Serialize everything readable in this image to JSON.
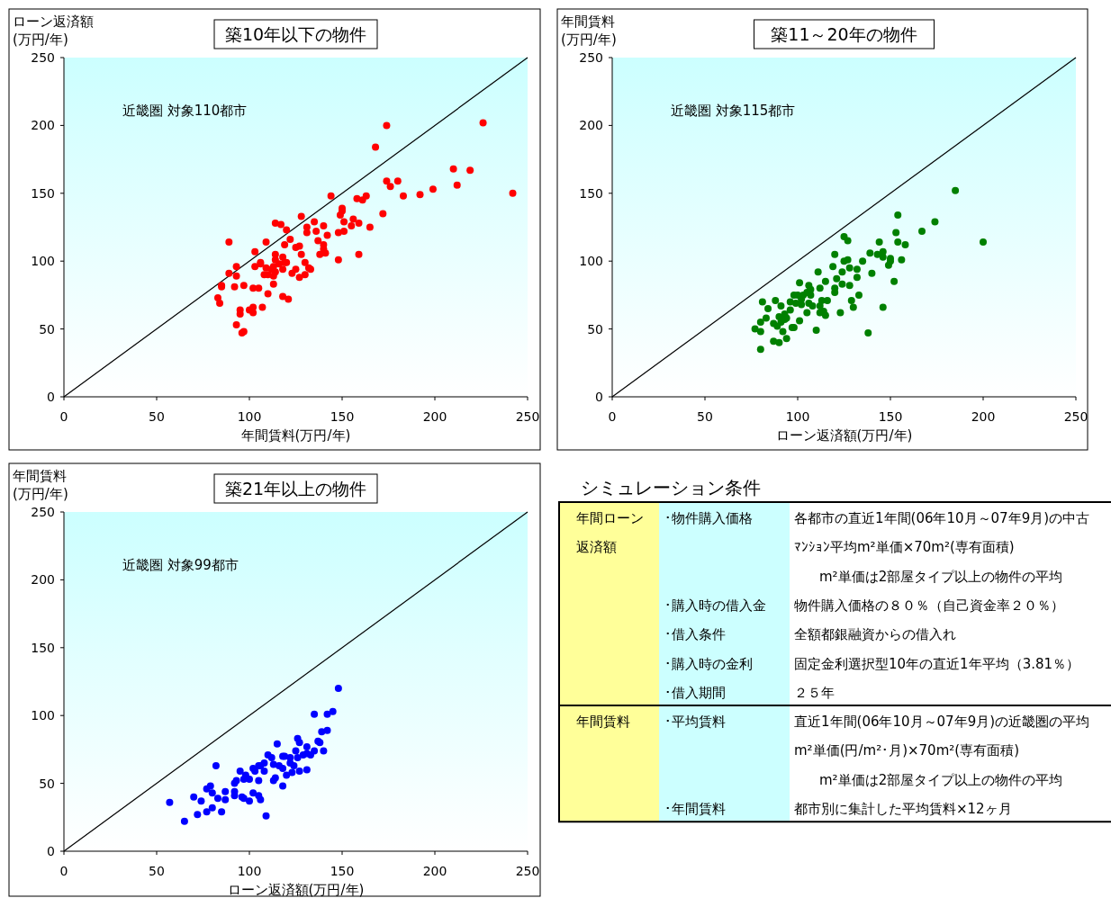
{
  "chart_data": [
    {
      "type": "scatter",
      "title": "築10年以下の物件",
      "xlabel": "年間賃料(万円/年)",
      "ylabel": "ローン返済額\n(万円/年)",
      "annotations": [
        "近畿圏 対象110都市"
      ],
      "xlim": [
        0,
        250
      ],
      "ylim": [
        0,
        250
      ],
      "xticks": [
        0,
        50,
        100,
        150,
        200,
        250
      ],
      "yticks": [
        0,
        50,
        100,
        150,
        200,
        250
      ],
      "series": [
        {
          "type": "line",
          "marker": "none",
          "color": "#000000",
          "x": [
            0,
            250
          ],
          "values": [
            0,
            250
          ]
        },
        {
          "type": "scatter",
          "marker": "circle",
          "color": "#ff0000",
          "x": [
            174,
            226,
            168,
            210,
            219,
            242,
            174,
            180,
            176,
            183,
            192,
            199,
            212,
            144,
            158,
            161,
            163,
            150,
            150,
            149,
            172,
            151,
            156,
            155,
            159,
            165,
            159,
            128,
            135,
            140,
            131,
            131,
            136,
            142,
            148,
            151,
            137,
            140,
            138,
            141,
            148,
            114,
            117,
            120,
            122,
            119,
            125,
            127,
            128,
            130,
            132,
            130,
            127,
            125,
            123,
            118,
            119,
            120,
            118,
            114,
            114,
            113,
            114,
            113,
            109,
            108,
            110,
            106,
            103,
            103,
            109,
            113,
            110,
            118,
            121,
            107,
            102,
            100,
            102,
            95,
            95,
            93,
            97,
            96,
            105,
            102,
            97,
            92,
            85,
            85,
            83,
            84,
            89,
            89,
            93,
            93,
            112,
            116,
            106,
            140,
            133
          ],
          "values": [
            200,
            202,
            184,
            168,
            167,
            150,
            159,
            159,
            155,
            148,
            149,
            153,
            156,
            148,
            146,
            145,
            148,
            139,
            137,
            134,
            135,
            129,
            131,
            126,
            128,
            125,
            105,
            133,
            129,
            126,
            125,
            121,
            122,
            119,
            121,
            122,
            115,
            112,
            105,
            106,
            101,
            128,
            127,
            123,
            116,
            112,
            110,
            111,
            105,
            99,
            95,
            90,
            88,
            94,
            91,
            103,
            99,
            99,
            94,
            105,
            101,
            96,
            92,
            89,
            95,
            90,
            90,
            99,
            96,
            107,
            114,
            83,
            76,
            74,
            72,
            66,
            66,
            64,
            62,
            64,
            61,
            53,
            48,
            47,
            80,
            80,
            82,
            81,
            82,
            81,
            73,
            69,
            114,
            91,
            89,
            96,
            94,
            98,
            98,
            109,
            94
          ]
        }
      ]
    },
    {
      "type": "scatter",
      "title": "築11～20年の物件",
      "xlabel": "ローン返済額(万円/年)",
      "ylabel": "年間賃料\n(万円/年)",
      "annotations": [
        "近畿圏 対象115都市"
      ],
      "xlim": [
        0,
        250
      ],
      "ylim": [
        0,
        250
      ],
      "xticks": [
        0,
        50,
        100,
        150,
        200,
        250
      ],
      "yticks": [
        0,
        50,
        100,
        150,
        200,
        250
      ],
      "series": [
        {
          "type": "line",
          "marker": "none",
          "color": "#000000",
          "x": [
            0,
            250
          ],
          "values": [
            0,
            250
          ]
        },
        {
          "type": "scatter",
          "marker": "circle",
          "color": "#008000",
          "x": [
            185,
            200,
            154,
            174,
            167,
            153,
            154,
            158,
            156,
            150,
            149,
            150,
            152,
            144,
            146,
            143,
            146,
            139,
            135,
            140,
            132,
            132,
            133,
            146,
            138,
            125,
            127,
            120,
            125,
            127,
            119,
            124,
            128,
            111,
            121,
            115,
            124,
            128,
            120,
            120,
            112,
            129,
            130,
            123,
            110,
            116,
            113,
            114,
            112,
            101,
            106,
            98,
            105,
            107,
            102,
            106,
            108,
            105,
            96,
            99,
            91,
            88,
            81,
            84,
            96,
            93,
            90,
            94,
            83,
            80,
            87,
            89,
            101,
            98,
            97,
            77,
            80,
            92,
            87,
            94,
            90,
            80,
            100,
            103,
            107,
            102,
            93,
            112,
            115,
            91
          ],
          "values": [
            152,
            114,
            134,
            129,
            122,
            121,
            114,
            112,
            101,
            102,
            97,
            100,
            85,
            114,
            107,
            105,
            103,
            106,
            100,
            91,
            94,
            88,
            75,
            66,
            47,
            118,
            115,
            105,
            100,
            101,
            96,
            92,
            95,
            92,
            87,
            85,
            83,
            82,
            80,
            77,
            80,
            71,
            66,
            62,
            49,
            71,
            71,
            63,
            67,
            84,
            82,
            75,
            77,
            75,
            72,
            69,
            67,
            62,
            70,
            69,
            67,
            71,
            70,
            65,
            64,
            61,
            59,
            58,
            58,
            55,
            54,
            52,
            56,
            51,
            51,
            50,
            48,
            48,
            41,
            43,
            40,
            35,
            75,
            75,
            79,
            68,
            57,
            62,
            60,
            55
          ]
        }
      ]
    },
    {
      "type": "scatter",
      "title": "築21年以上の物件",
      "xlabel": "ローン返済額(万円/年)",
      "ylabel": "年間賃料\n(万円/年)",
      "annotations": [
        "近畿圏 対象99都市"
      ],
      "xlim": [
        0,
        250
      ],
      "ylim": [
        0,
        250
      ],
      "xticks": [
        0,
        50,
        100,
        150,
        200,
        250
      ],
      "yticks": [
        0,
        50,
        100,
        150,
        200,
        250
      ],
      "series": [
        {
          "type": "line",
          "marker": "none",
          "color": "#000000",
          "x": [
            0,
            250
          ],
          "values": [
            0,
            250
          ]
        },
        {
          "type": "scatter",
          "marker": "circle",
          "color": "#0000ff",
          "x": [
            148,
            135,
            142,
            145,
            139,
            142,
            126,
            127,
            115,
            137,
            138,
            131,
            135,
            140,
            131,
            126,
            119,
            122,
            124,
            118,
            123,
            127,
            131,
            110,
            113,
            108,
            105,
            102,
            108,
            114,
            113,
            118,
            105,
            98,
            95,
            93,
            92,
            97,
            92,
            92,
            96,
            102,
            105,
            106,
            100,
            97,
            82,
            79,
            77,
            80,
            87,
            83,
            87,
            74,
            70,
            80,
            77,
            85,
            72,
            65,
            57,
            109,
            118,
            116,
            120,
            112,
            106,
            103,
            100,
            129,
            125,
            133,
            122
          ],
          "values": [
            120,
            101,
            101,
            103,
            88,
            89,
            83,
            80,
            79,
            81,
            80,
            77,
            74,
            74,
            72,
            69,
            70,
            65,
            63,
            61,
            58,
            59,
            60,
            71,
            64,
            65,
            63,
            61,
            59,
            54,
            52,
            48,
            52,
            56,
            59,
            52,
            50,
            53,
            44,
            41,
            40,
            43,
            41,
            38,
            37,
            39,
            63,
            48,
            46,
            43,
            44,
            39,
            38,
            37,
            40,
            32,
            29,
            29,
            27,
            22,
            36,
            26,
            70,
            63,
            56,
            69,
            63,
            59,
            53,
            71,
            74,
            71,
            69
          ]
        }
      ]
    },
    {
      "type": "other",
      "title": "シミュレーション条件",
      "annotations": [
        "年間ローン",
        "返済額",
        "･物件購入価格",
        "各都市の直近1年間(06年10月～07年9月)の中古",
        "ﾏﾝｼｮﾝ平均m²単価×70m²(専有面積)",
        "m²単価は2部屋タイプ以上の物件の平均",
        "･購入時の借入金",
        "物件購入価格の８０％（自己資金率２０％）",
        "･借入条件",
        "全額都銀融資からの借入れ",
        "･購入時の金利",
        "固定金利選択型10年の直近1年平均（3.81％）",
        "･借入期間",
        "２５年",
        "年間賃料",
        "･平均賃料",
        "直近1年間(06年10月～07年9月)の近畿圏の平均",
        "m²単価(円/m²･月)×70m²(専有面積)",
        "m²単価は2部屋タイプ以上の物件の平均",
        "･年間賃料",
        "都市別に集計した平均賃料×12ヶ月"
      ]
    }
  ]
}
